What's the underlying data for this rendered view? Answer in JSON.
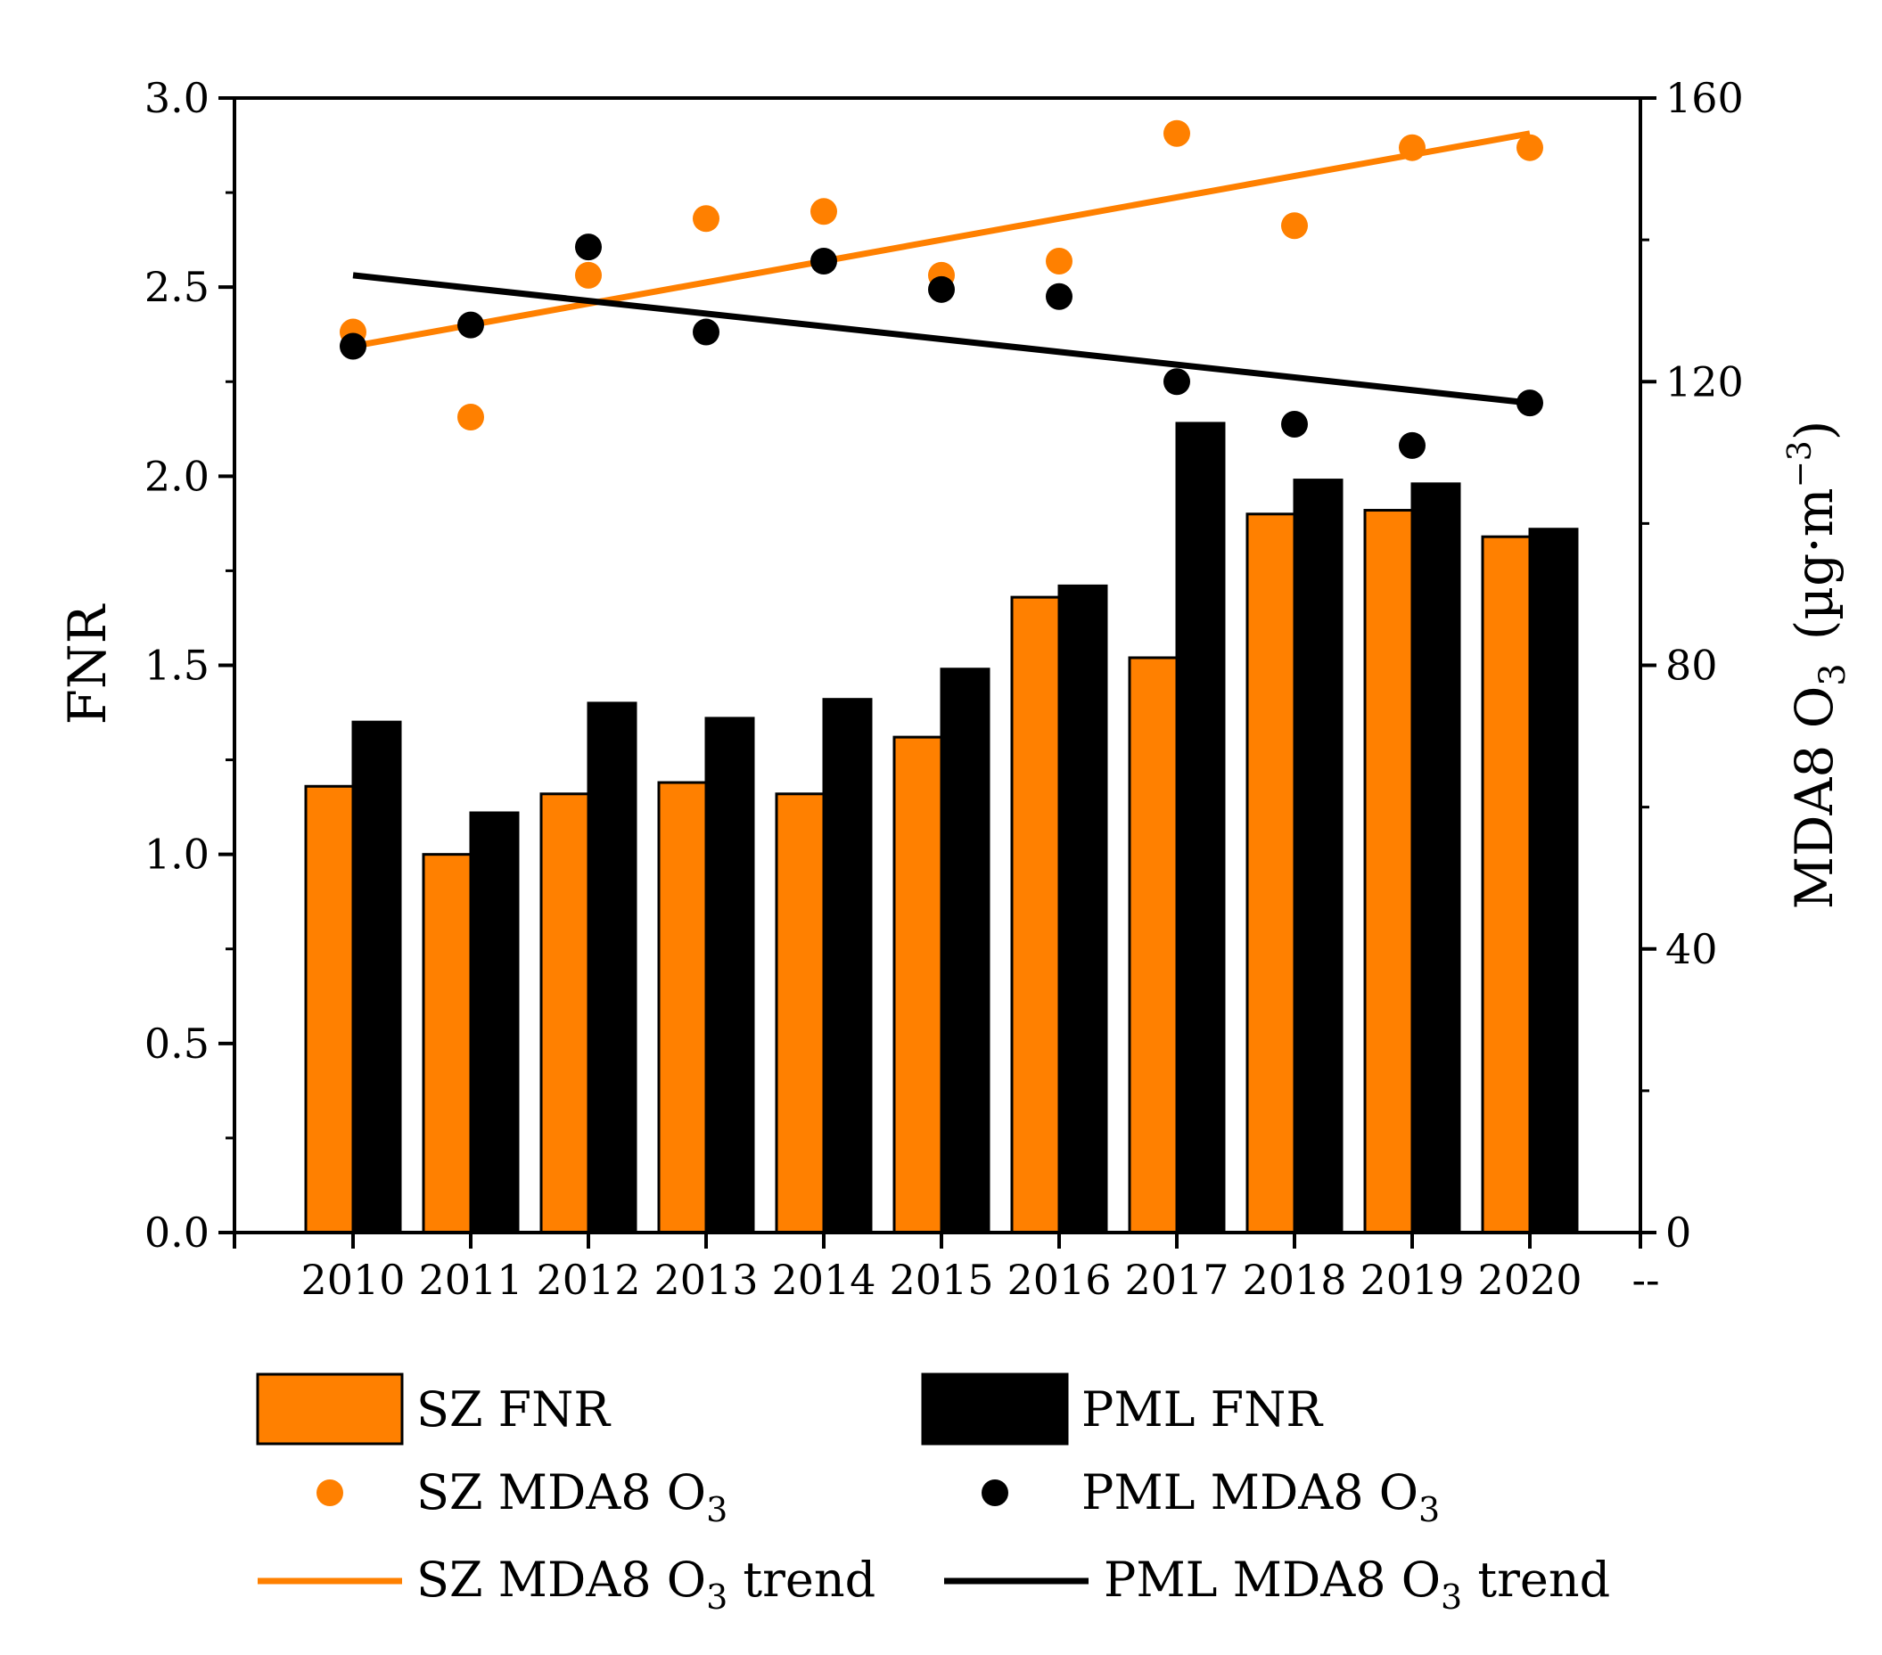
{
  "chart_data": {
    "type": "bar",
    "categories": [
      "2010",
      "2011",
      "2012",
      "2013",
      "2014",
      "2015",
      "2016",
      "2017",
      "2018",
      "2019",
      "2020"
    ],
    "extra_x_tick": "--",
    "series": [
      {
        "name": "SZ FNR",
        "axis": "left",
        "kind": "bar",
        "values": [
          1.18,
          1.0,
          1.16,
          1.19,
          1.16,
          1.31,
          1.68,
          1.52,
          1.9,
          1.91,
          1.84
        ]
      },
      {
        "name": "PML FNR",
        "axis": "left",
        "kind": "bar",
        "values": [
          1.35,
          1.11,
          1.4,
          1.36,
          1.41,
          1.49,
          1.71,
          2.14,
          1.99,
          1.98,
          1.86
        ]
      },
      {
        "name": "SZ MDA8 O3",
        "axis": "right",
        "kind": "scatter",
        "values": [
          127,
          115,
          135,
          143,
          144,
          135,
          137,
          155,
          142,
          153,
          153
        ]
      },
      {
        "name": "PML MDA8 O3",
        "axis": "right",
        "kind": "scatter",
        "values": [
          125,
          128,
          139,
          127,
          137,
          133,
          132,
          120,
          114,
          111,
          117
        ]
      },
      {
        "name": "SZ MDA8 O3 trend",
        "axis": "right",
        "kind": "line",
        "start": [
          2010,
          125
        ],
        "end": [
          2020,
          155
        ]
      },
      {
        "name": "PML MDA8 O3 trend",
        "axis": "right",
        "kind": "line",
        "start": [
          2010,
          135
        ],
        "end": [
          2020,
          117
        ]
      }
    ],
    "left_axis": {
      "label": "FNR",
      "ylim": [
        0,
        3.0
      ],
      "ticks": [
        "0.0",
        "0.5",
        "1.0",
        "1.5",
        "2.0",
        "2.5",
        "3.0"
      ]
    },
    "right_axis": {
      "label_main": "MDA8 O",
      "label_sub": "3",
      "label_unit": "(µg·m",
      "label_sup": "−3",
      "label_close": ")",
      "ylim": [
        0,
        160
      ],
      "ticks": [
        "0",
        "40",
        "80",
        "120",
        "160"
      ]
    },
    "grid": false,
    "legend": {
      "position": "bottom",
      "items": [
        {
          "main": "SZ FNR",
          "sub": "",
          "after": ""
        },
        {
          "main": "PML FNR",
          "sub": "",
          "after": ""
        },
        {
          "main": "SZ MDA8 O",
          "sub": "3",
          "after": ""
        },
        {
          "main": "PML MDA8 O",
          "sub": "3",
          "after": ""
        },
        {
          "main": "SZ MDA8 O",
          "sub": "3",
          "after": " trend"
        },
        {
          "main": "PML MDA8 O",
          "sub": "3",
          "after": " trend"
        }
      ]
    },
    "colors": {
      "sz": "#ff8000",
      "pml": "#000000",
      "axis": "#000000"
    }
  }
}
